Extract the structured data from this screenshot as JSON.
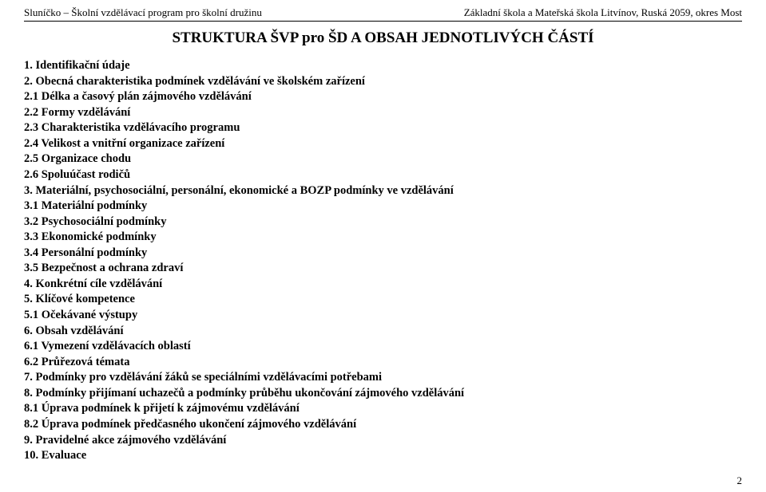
{
  "header": {
    "left": "Sluníčko – Školní vzdělávací program pro školní družinu",
    "right": "Základní škola a Mateřská škola Litvínov, Ruská 2059, okres Most"
  },
  "title": "STRUKTURA ŠVP pro ŠD A OBSAH JEDNOTLIVÝCH ČÁSTÍ",
  "toc": [
    "1. Identifikační údaje",
    "2. Obecná charakteristika podmínek vzdělávání ve školském zařízení",
    "2.1 Délka a časový plán zájmového vzdělávání",
    "2.2 Formy vzdělávání",
    "2.3 Charakteristika vzdělávacího programu",
    "2.4 Velikost a vnitřní organizace zařízení",
    "2.5 Organizace chodu",
    "2.6 Spoluúčast rodičů",
    "3. Materiální, psychosociální, personální, ekonomické a BOZP podmínky ve vzdělávání",
    "3.1 Materiální podmínky",
    "3.2 Psychosociální podmínky",
    "3.3 Ekonomické podmínky",
    "3.4 Personální podmínky",
    "3.5 Bezpečnost a ochrana zdraví",
    "4. Konkrétní cíle vzdělávání",
    "5. Klíčové kompetence",
    "5.1 Očekávané výstupy",
    "6. Obsah vzdělávání",
    "6.1 Vymezení vzdělávacích oblastí",
    "6.2 Průřezová témata",
    "7. Podmínky pro vzdělávání žáků se speciálními vzdělávacími potřebami",
    "8. Podmínky přijímaní uchazečů a podmínky průběhu ukončování zájmového vzdělávání",
    "8.1 Úprava podmínek k přijetí k zájmovému vzdělávání",
    "8.2 Úprava podmínek předčasného ukončení zájmového vzdělávání",
    "9. Pravidelné akce zájmového vzdělávání",
    "10. Evaluace"
  ],
  "page_number": "2"
}
